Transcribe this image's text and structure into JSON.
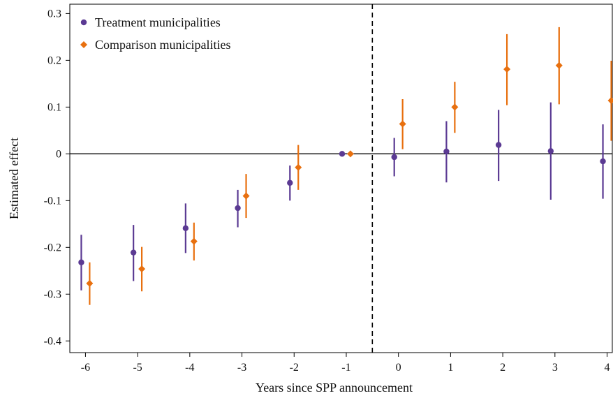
{
  "chart_data": {
    "type": "scatter",
    "subtype": "event-study coefficient plot with confidence intervals",
    "xlabel": "Years since SPP announcement",
    "ylabel": "Estimated effect",
    "x_ticks": [
      -6,
      -5,
      -4,
      -3,
      -2,
      -1,
      0,
      1,
      2,
      3,
      4
    ],
    "y_ticks": [
      -0.4,
      -0.3,
      -0.2,
      -0.1,
      0,
      0.1,
      0.2,
      0.3
    ],
    "y_tick_labels": [
      "-0.4",
      "-0.3",
      "-0.2",
      "-0.1",
      "0",
      "0.1",
      "0.2",
      "0.3"
    ],
    "xlim": [
      -6.3,
      4.1
    ],
    "ylim": [
      -0.425,
      0.32
    ],
    "grid": false,
    "reference_hline_y": 0,
    "reference_vline_x": -0.5,
    "legend_position": "top-left",
    "series": [
      {
        "name": "Treatment municipalities",
        "marker": "circle",
        "color": "#5b3a93",
        "offset": -0.08,
        "points": [
          {
            "x": -6,
            "y": -0.232,
            "lo": -0.292,
            "hi": -0.173
          },
          {
            "x": -5,
            "y": -0.211,
            "lo": -0.272,
            "hi": -0.152
          },
          {
            "x": -4,
            "y": -0.159,
            "lo": -0.212,
            "hi": -0.106
          },
          {
            "x": -3,
            "y": -0.116,
            "lo": -0.157,
            "hi": -0.077
          },
          {
            "x": -2,
            "y": -0.062,
            "lo": -0.1,
            "hi": -0.025
          },
          {
            "x": -1,
            "y": 0.0,
            "lo": 0.0,
            "hi": 0.0
          },
          {
            "x": 0,
            "y": -0.007,
            "lo": -0.048,
            "hi": 0.034
          },
          {
            "x": 1,
            "y": 0.005,
            "lo": -0.061,
            "hi": 0.07
          },
          {
            "x": 2,
            "y": 0.019,
            "lo": -0.058,
            "hi": 0.094
          },
          {
            "x": 3,
            "y": 0.006,
            "lo": -0.098,
            "hi": 0.11
          },
          {
            "x": 4,
            "y": -0.016,
            "lo": -0.096,
            "hi": 0.063
          }
        ]
      },
      {
        "name": "Comparison municipalities",
        "marker": "diamond",
        "color": "#e8700f",
        "offset": 0.08,
        "points": [
          {
            "x": -6,
            "y": -0.277,
            "lo": -0.323,
            "hi": -0.232
          },
          {
            "x": -5,
            "y": -0.246,
            "lo": -0.294,
            "hi": -0.199
          },
          {
            "x": -4,
            "y": -0.187,
            "lo": -0.228,
            "hi": -0.147
          },
          {
            "x": -3,
            "y": -0.09,
            "lo": -0.137,
            "hi": -0.043
          },
          {
            "x": -2,
            "y": -0.029,
            "lo": -0.077,
            "hi": 0.019
          },
          {
            "x": -1,
            "y": 0.0,
            "lo": 0.0,
            "hi": 0.0
          },
          {
            "x": 0,
            "y": 0.064,
            "lo": 0.01,
            "hi": 0.117
          },
          {
            "x": 1,
            "y": 0.1,
            "lo": 0.045,
            "hi": 0.154
          },
          {
            "x": 2,
            "y": 0.181,
            "lo": 0.104,
            "hi": 0.256
          },
          {
            "x": 3,
            "y": 0.189,
            "lo": 0.106,
            "hi": 0.271
          },
          {
            "x": 4,
            "y": 0.114,
            "lo": 0.028,
            "hi": 0.199
          }
        ]
      }
    ]
  }
}
